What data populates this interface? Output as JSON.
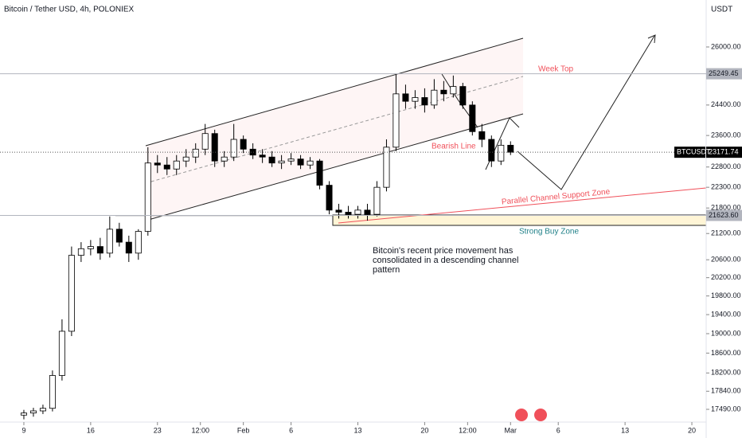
{
  "chart_data": {
    "type": "candlestick",
    "title": "Bitcoin / Tether USD, 4h, POLONIEX",
    "currency_label": "USDT",
    "symbol": "BTCUSDT",
    "log_scale": true,
    "up_color": "#ffffff",
    "down_color": "#000000",
    "x": [
      9,
      10,
      11,
      12,
      13,
      14,
      15,
      16,
      17,
      18,
      19,
      20,
      21,
      22,
      23,
      24,
      25,
      26,
      27,
      28,
      29,
      30,
      31,
      32,
      33,
      34,
      35,
      36,
      37,
      38,
      39,
      40,
      41,
      42,
      43,
      44,
      45,
      46,
      47,
      48,
      49,
      50,
      51,
      52,
      53,
      54,
      55,
      56,
      57,
      58,
      59,
      60
    ],
    "open": [
      17380,
      17420,
      17460,
      17510,
      18150,
      19050,
      20700,
      20850,
      20900,
      20750,
      21300,
      21000,
      20750,
      21250,
      22900,
      22850,
      22750,
      22950,
      23050,
      23250,
      23650,
      22950,
      23050,
      23500,
      23250,
      23100,
      23050,
      22900,
      22950,
      23000,
      22850,
      22950,
      22350,
      21750,
      21700,
      21650,
      21750,
      21650,
      22300,
      23300,
      24700,
      24500,
      24600,
      24400,
      24800,
      24700,
      24900,
      24400,
      23700,
      23500,
      22950,
      23350
    ],
    "high": [
      17480,
      17520,
      17580,
      18250,
      19300,
      20900,
      21000,
      21050,
      21100,
      21600,
      21450,
      21150,
      21300,
      23300,
      23100,
      23050,
      23100,
      23250,
      23400,
      23900,
      23750,
      23200,
      23900,
      23600,
      23400,
      23250,
      23200,
      23100,
      23150,
      23100,
      23050,
      23000,
      22450,
      21900,
      21850,
      21850,
      21900,
      22450,
      23500,
      25249.45,
      24950,
      24800,
      24850,
      25100,
      25050,
      25200,
      25000,
      24500,
      23900,
      23600,
      23500,
      23450
    ],
    "low": [
      17300,
      17350,
      17400,
      17450,
      18050,
      18950,
      20550,
      20700,
      20600,
      20650,
      20900,
      20550,
      20600,
      21150,
      22650,
      22600,
      22600,
      22800,
      22900,
      23100,
      22800,
      22800,
      22950,
      23150,
      23000,
      22900,
      22800,
      22750,
      22850,
      22750,
      22750,
      22250,
      21650,
      21550,
      21550,
      21550,
      21500,
      21600,
      22200,
      23200,
      24300,
      24300,
      24200,
      24300,
      24500,
      24600,
      24300,
      23600,
      23300,
      22800,
      22850,
      23100
    ],
    "close": [
      17420,
      17460,
      17510,
      18150,
      19050,
      20700,
      20850,
      20900,
      20750,
      21300,
      21000,
      20750,
      21250,
      22900,
      22850,
      22750,
      22950,
      23050,
      23250,
      23650,
      22950,
      23050,
      23500,
      23250,
      23100,
      23050,
      22900,
      22950,
      23000,
      22850,
      22950,
      22350,
      21750,
      21700,
      21650,
      21750,
      21650,
      22300,
      23300,
      24700,
      24500,
      24600,
      24400,
      24800,
      24700,
      24900,
      24400,
      23700,
      23500,
      22950,
      23350,
      23171.74
    ],
    "xlim": [
      6.5,
      80.5
    ],
    "xticks": [
      9,
      16,
      23,
      {
        "value": 27.5,
        "label": "12:00"
      },
      {
        "value": 32,
        "label": "Feb"
      },
      {
        "value": 37,
        "label": "6"
      },
      {
        "value": 44,
        "label": "13"
      },
      {
        "value": 51,
        "label": "20"
      },
      {
        "value": 55.5,
        "label": "12:00"
      },
      {
        "value": 60,
        "label": "Mar"
      },
      {
        "value": 65,
        "label": "6"
      },
      {
        "value": 72,
        "label": "13"
      },
      {
        "value": 79,
        "label": "20"
      }
    ],
    "ylim": [
      17248,
      27371
    ],
    "yticks": [
      {
        "value": 26000,
        "label": "26000.00"
      },
      {
        "value": 24400,
        "label": "24400.00"
      },
      {
        "value": 23600,
        "label": "23600.00"
      },
      {
        "value": 22800,
        "label": "22800.00"
      },
      {
        "value": 22300,
        "label": "22300.00"
      },
      {
        "value": 21800,
        "label": "21800.00"
      },
      {
        "value": 21200,
        "label": "21200.00"
      },
      {
        "value": 20600,
        "label": "20600.00"
      },
      {
        "value": 20200,
        "label": "20200.00"
      },
      {
        "value": 19800,
        "label": "19800.00"
      },
      {
        "value": 19400,
        "label": "19400.00"
      },
      {
        "value": 19000,
        "label": "19000.00"
      },
      {
        "value": 18600,
        "label": "18600.00"
      },
      {
        "value": 18200,
        "label": "18200.00"
      },
      {
        "value": 17840,
        "label": "17840.00"
      },
      {
        "value": 17490,
        "label": "17490.00"
      }
    ],
    "price_lines": [
      {
        "value": 25249.45,
        "label": "25249.45",
        "color": "#b2b5be"
      },
      {
        "value": 23171.74,
        "label": "23171.74",
        "color": "#000000"
      },
      {
        "value": 21623.6,
        "label": "21623.60",
        "color": "#b2b5be"
      }
    ],
    "annotations": {
      "week_top": "Week Top",
      "bearish_line": "Bearish Line",
      "support_zone": "Parallel  Channel Support Zone",
      "buy_zone": "Strong Buy Zone",
      "comment": [
        "Bitcoin's recent price movement has",
        "consolidated in a descending channel",
        "pattern"
      ]
    }
  }
}
